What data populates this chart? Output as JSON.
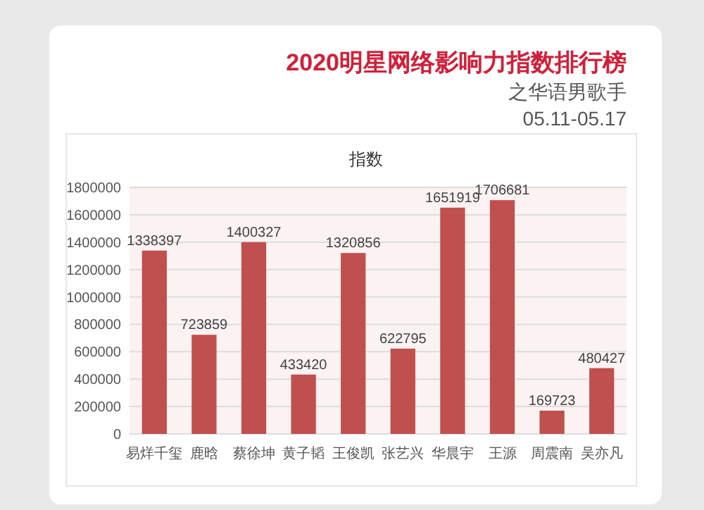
{
  "chart_data": {
    "type": "bar",
    "title": "2020明星网络影响力指数排行榜",
    "subtitle": "之华语男歌手",
    "annotations": [
      "05.11-05.17",
      "指数"
    ],
    "categories": [
      "易烊千玺",
      "鹿晗",
      "蔡徐坤",
      "黄子韬",
      "王俊凯",
      "张艺兴",
      "华晨宇",
      "王源",
      "周震南",
      "吴亦凡"
    ],
    "values": [
      1338397,
      723859,
      1400327,
      433420,
      1320856,
      622795,
      1651919,
      1706681,
      169723,
      480427
    ],
    "color": "#c0504d",
    "ylim": [
      0,
      1800000
    ],
    "yticks": [
      0,
      200000,
      400000,
      600000,
      800000,
      1000000,
      1200000,
      1400000,
      1600000,
      1800000
    ],
    "grid": "y",
    "data_labels": true
  }
}
